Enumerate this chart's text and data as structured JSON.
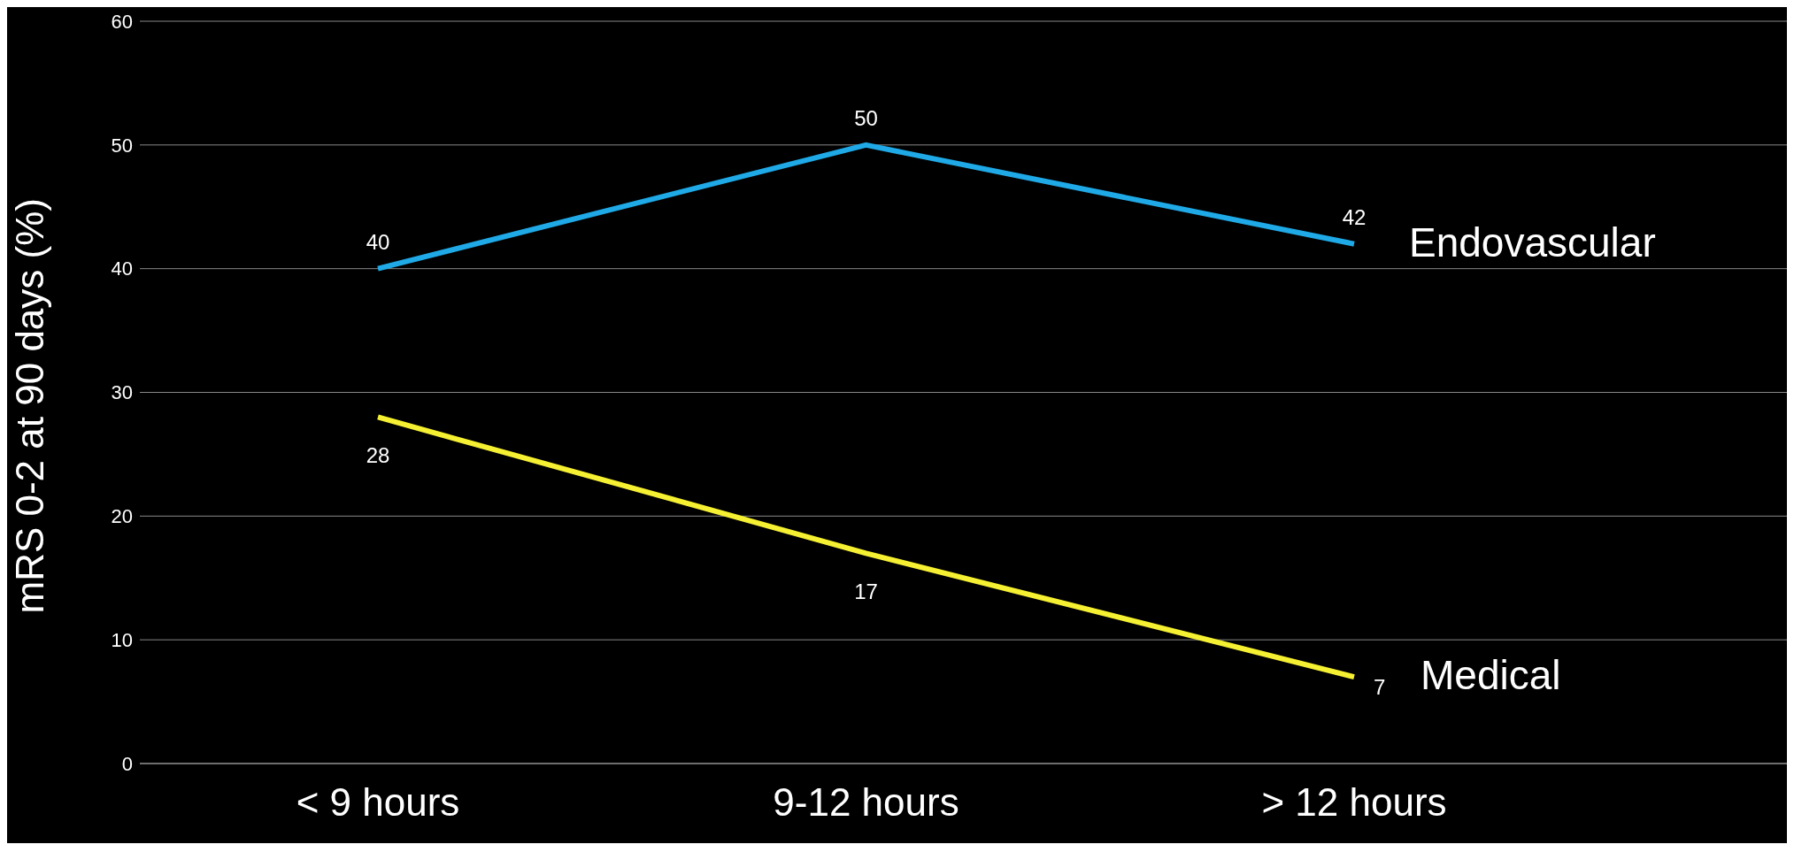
{
  "chart_data": {
    "type": "line",
    "ylabel": "mRS 0-2 at 90 days (%)",
    "categories": [
      "< 9 hours",
      "9-12 hours",
      "> 12 hours"
    ],
    "ylim": [
      0,
      60
    ],
    "yticks": [
      0,
      10,
      20,
      30,
      40,
      50,
      60
    ],
    "grid": "y",
    "legend": false,
    "marker": "none",
    "line_style": "solid",
    "data_labels": true,
    "series": [
      {
        "name": "Endovascular",
        "color": "#1fa9e6",
        "values": [
          40,
          50,
          42
        ]
      },
      {
        "name": "Medical",
        "color": "#f5f032",
        "values": [
          28,
          17,
          7
        ]
      }
    ]
  }
}
